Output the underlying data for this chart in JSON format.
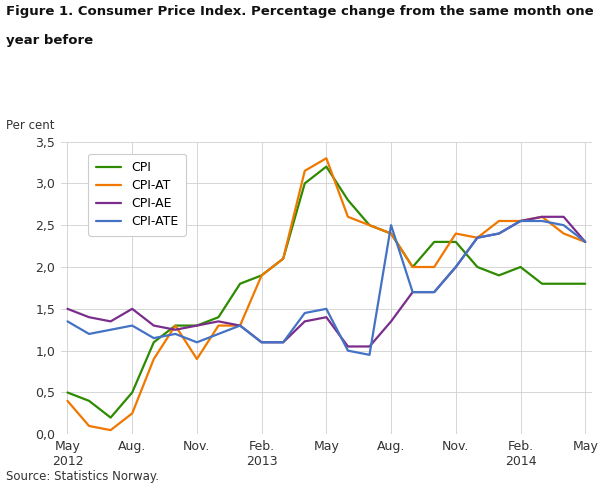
{
  "title_line1": "Figure 1. Consumer Price Index. Percentage change from the same month one",
  "title_line2": "year before",
  "ylabel": "Per cent",
  "source": "Source: Statistics Norway.",
  "ylim": [
    0.0,
    3.5
  ],
  "yticks": [
    0.0,
    0.5,
    1.0,
    1.5,
    2.0,
    2.5,
    3.0,
    3.5
  ],
  "ytick_labels": [
    "0,0",
    "0,5",
    "1,0",
    "1,5",
    "2,0",
    "2,5",
    "3,0",
    "3,5"
  ],
  "x_tick_labels": [
    "May\n2012",
    "Aug.",
    "Nov.",
    "Feb.\n2013",
    "May",
    "Aug.",
    "Nov.",
    "Feb.\n2014",
    "May"
  ],
  "x_tick_positions": [
    0,
    3,
    6,
    9,
    12,
    15,
    18,
    21,
    24
  ],
  "months": 25,
  "CPI": [
    0.5,
    0.4,
    0.2,
    0.5,
    1.1,
    1.3,
    1.3,
    1.4,
    1.8,
    1.9,
    2.1,
    3.0,
    3.2,
    2.8,
    2.5,
    2.4,
    2.0,
    2.3,
    2.3,
    2.0,
    1.9,
    2.0,
    1.8,
    1.8,
    1.8
  ],
  "CPI_AT": [
    0.4,
    0.1,
    0.05,
    0.25,
    0.9,
    1.3,
    0.9,
    1.3,
    1.3,
    1.9,
    2.1,
    3.15,
    3.3,
    2.6,
    2.5,
    2.4,
    2.0,
    2.0,
    2.4,
    2.35,
    2.55,
    2.55,
    2.6,
    2.4,
    2.3
  ],
  "CPI_AE": [
    1.5,
    1.4,
    1.35,
    1.5,
    1.3,
    1.25,
    1.3,
    1.35,
    1.3,
    1.1,
    1.1,
    1.35,
    1.4,
    1.05,
    1.05,
    1.35,
    1.7,
    1.7,
    2.0,
    2.35,
    2.4,
    2.55,
    2.6,
    2.6,
    2.3
  ],
  "CPI_ATE": [
    1.35,
    1.2,
    1.25,
    1.3,
    1.15,
    1.2,
    1.1,
    1.2,
    1.3,
    1.1,
    1.1,
    1.45,
    1.5,
    1.0,
    0.95,
    2.5,
    1.7,
    1.7,
    2.0,
    2.35,
    2.4,
    2.55,
    2.55,
    2.5,
    2.3
  ],
  "colors": {
    "CPI": "#2e8b00",
    "CPI_AT": "#f07800",
    "CPI_AE": "#7b2d8b",
    "CPI_ATE": "#4472c4"
  },
  "legend_labels": [
    "CPI",
    "CPI-AT",
    "CPI-AE",
    "CPI-ATE"
  ],
  "background_color": "#ffffff",
  "grid_color": "#d0d0d0",
  "linewidth": 1.6
}
